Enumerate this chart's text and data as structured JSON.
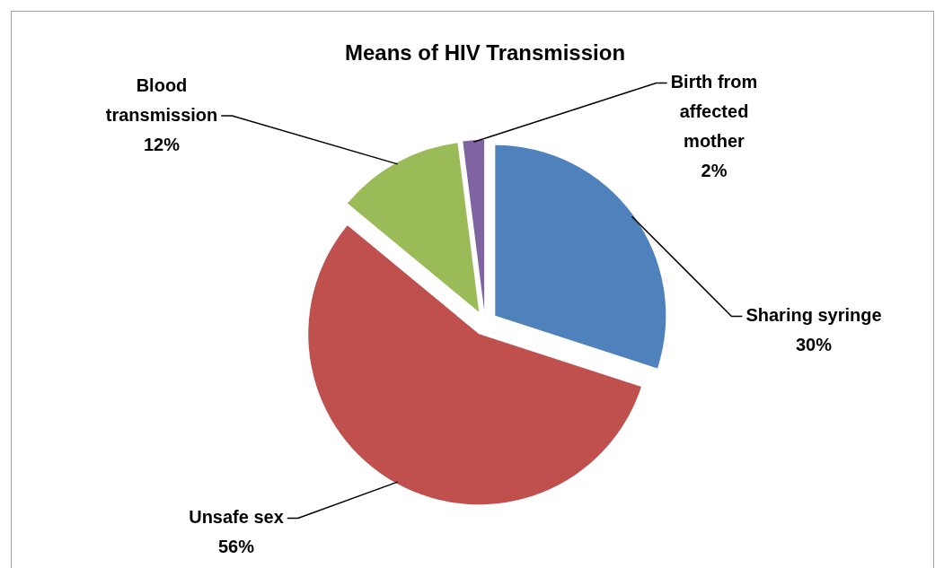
{
  "chart_data": {
    "type": "pie",
    "title": "Means of HIV Transmission",
    "categories": [
      "Sharing syringe",
      "Unsafe sex",
      "Blood transmission",
      "Birth from affected mother"
    ],
    "values": [
      30,
      56,
      12,
      2
    ],
    "colors": [
      "#4f81bd",
      "#c0504d",
      "#9bbb59",
      "#8064a2"
    ],
    "value_labels": [
      "30%",
      "56%",
      "12%",
      "2%"
    ]
  }
}
